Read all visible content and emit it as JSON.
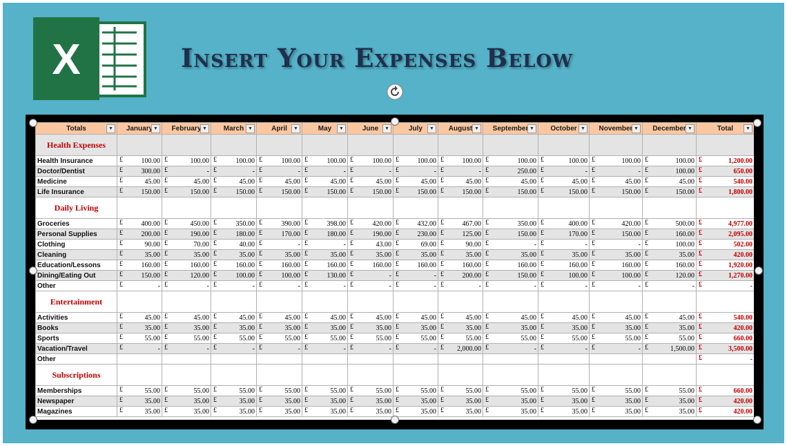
{
  "title": "Insert Your Expenses Below",
  "logo": {
    "icon": "excel-logo-icon",
    "letter": "X",
    "color": "#217346"
  },
  "rotate_icon": "rotate-icon",
  "currency": "£",
  "columns": [
    "Totals",
    "January",
    "February",
    "March",
    "April",
    "May",
    "June",
    "July",
    "August",
    "September",
    "October",
    "November",
    "December",
    "Total"
  ],
  "sections": [
    {
      "name": "Health Expenses",
      "rows": [
        {
          "label": "Health Insurance",
          "values": [
            "100.00",
            "100.00",
            "100.00",
            "100.00",
            "100.00",
            "100.00",
            "100.00",
            "100.00",
            "100.00",
            "100.00",
            "100.00",
            "100.00"
          ],
          "total": "1,200.00"
        },
        {
          "label": "Doctor/Dentist",
          "values": [
            "300.00",
            "-",
            "-",
            "-",
            "-",
            "-",
            "-",
            "-",
            "250.00",
            "-",
            "-",
            "100.00"
          ],
          "total": "650.00"
        },
        {
          "label": "Medicine",
          "values": [
            "45.00",
            "45.00",
            "45.00",
            "45.00",
            "45.00",
            "45.00",
            "45.00",
            "45.00",
            "45.00",
            "45.00",
            "45.00",
            "45.00"
          ],
          "total": "540.00"
        },
        {
          "label": "Life Insurance",
          "values": [
            "150.00",
            "150.00",
            "150.00",
            "150.00",
            "150.00",
            "150.00",
            "150.00",
            "150.00",
            "150.00",
            "150.00",
            "150.00",
            "150.00"
          ],
          "total": "1,800.00"
        }
      ]
    },
    {
      "name": "Daily Living",
      "rows": [
        {
          "label": "Groceries",
          "values": [
            "400.00",
            "450.00",
            "350.00",
            "390.00",
            "398.00",
            "420.00",
            "432.00",
            "467.00",
            "350.00",
            "400.00",
            "420.00",
            "500.00"
          ],
          "total": "4,977.00"
        },
        {
          "label": "Personal Supplies",
          "values": [
            "200.00",
            "190.00",
            "180.00",
            "170.00",
            "180.00",
            "190.00",
            "230.00",
            "125.00",
            "150.00",
            "170.00",
            "150.00",
            "160.00"
          ],
          "total": "2,095.00"
        },
        {
          "label": "Clothing",
          "values": [
            "90.00",
            "70.00",
            "40.00",
            "-",
            "-",
            "43.00",
            "69.00",
            "90.00",
            "-",
            "-",
            "-",
            "100.00"
          ],
          "total": "502.00"
        },
        {
          "label": "Cleaning",
          "values": [
            "35.00",
            "35.00",
            "35.00",
            "35.00",
            "35.00",
            "35.00",
            "35.00",
            "35.00",
            "35.00",
            "35.00",
            "35.00",
            "35.00"
          ],
          "total": "420.00"
        },
        {
          "label": "Education/Lessons",
          "values": [
            "160.00",
            "160.00",
            "160.00",
            "160.00",
            "160.00",
            "160.00",
            "160.00",
            "160.00",
            "160.00",
            "160.00",
            "160.00",
            "160.00"
          ],
          "total": "1,920.00"
        },
        {
          "label": "Dining/Eating Out",
          "values": [
            "150.00",
            "120.00",
            "100.00",
            "100.00",
            "130.00",
            "-",
            "-",
            "200.00",
            "150.00",
            "100.00",
            "100.00",
            "120.00"
          ],
          "total": "1,270.00"
        },
        {
          "label": "Other",
          "values": [
            "-",
            "-",
            "-",
            "-",
            "-",
            "-",
            "-",
            "-",
            "-",
            "-",
            "-",
            "-"
          ],
          "total": "-"
        }
      ]
    },
    {
      "name": "Entertainment",
      "rows": [
        {
          "label": "Activities",
          "values": [
            "45.00",
            "45.00",
            "45.00",
            "45.00",
            "45.00",
            "45.00",
            "45.00",
            "45.00",
            "45.00",
            "45.00",
            "45.00",
            "45.00"
          ],
          "total": "540.00"
        },
        {
          "label": "Books",
          "values": [
            "35.00",
            "35.00",
            "35.00",
            "35.00",
            "35.00",
            "35.00",
            "35.00",
            "35.00",
            "35.00",
            "35.00",
            "35.00",
            "35.00"
          ],
          "total": "420.00"
        },
        {
          "label": "Sports",
          "values": [
            "55.00",
            "55.00",
            "55.00",
            "55.00",
            "55.00",
            "55.00",
            "55.00",
            "55.00",
            "55.00",
            "55.00",
            "55.00",
            "55.00"
          ],
          "total": "660.00"
        },
        {
          "label": "Vacation/Travel",
          "values": [
            "-",
            "-",
            "-",
            "-",
            "-",
            "-",
            "-",
            "2,000.00",
            "-",
            "-",
            "-",
            "1,500.00"
          ],
          "total": "3,500.00"
        },
        {
          "label": "Other",
          "values": [
            "",
            "",
            "",
            "",
            "",
            "",
            "",
            "",
            "",
            "",
            "",
            ""
          ],
          "total": "-"
        }
      ]
    },
    {
      "name": "Subscriptions",
      "rows": [
        {
          "label": "Memberships",
          "values": [
            "55.00",
            "55.00",
            "55.00",
            "55.00",
            "55.00",
            "55.00",
            "55.00",
            "55.00",
            "55.00",
            "55.00",
            "55.00",
            "55.00"
          ],
          "total": "660.00"
        },
        {
          "label": "Newspaper",
          "values": [
            "35.00",
            "35.00",
            "35.00",
            "35.00",
            "35.00",
            "35.00",
            "35.00",
            "35.00",
            "35.00",
            "35.00",
            "35.00",
            "35.00"
          ],
          "total": "420.00"
        },
        {
          "label": "Magazines",
          "values": [
            "35.00",
            "35.00",
            "35.00",
            "35.00",
            "35.00",
            "35.00",
            "35.00",
            "35.00",
            "35.00",
            "35.00",
            "35.00",
            "35.00"
          ],
          "total": "420.00"
        }
      ]
    }
  ]
}
